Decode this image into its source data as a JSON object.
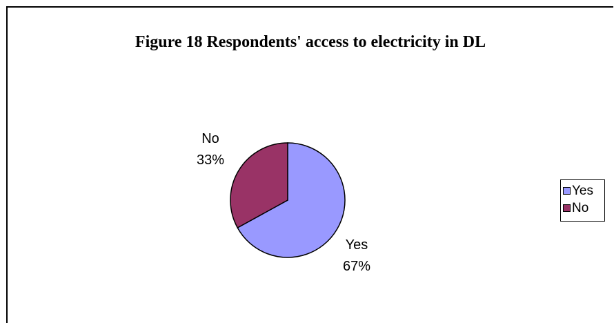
{
  "chart_data": {
    "type": "pie",
    "title": "Figure 18 Respondents' access to electricity in DL",
    "categories": [
      "Yes",
      "No"
    ],
    "values": [
      67,
      33
    ],
    "unit": "%",
    "colors": [
      "#9999ff",
      "#993366"
    ],
    "slice_labels": [
      {
        "name": "Yes",
        "percent": "67%"
      },
      {
        "name": "No",
        "percent": "33%"
      }
    ],
    "legend": {
      "placement": "right",
      "entries": [
        {
          "label": "Yes",
          "color": "#9999ff"
        },
        {
          "label": "No",
          "color": "#993366"
        }
      ]
    }
  }
}
